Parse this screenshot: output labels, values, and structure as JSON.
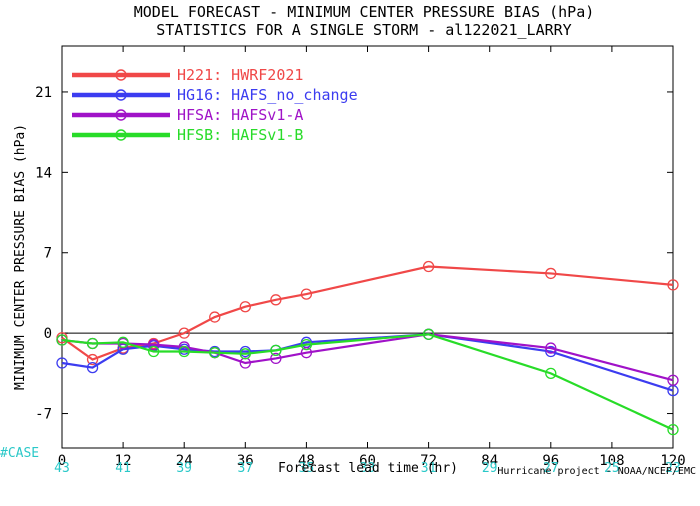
{
  "chart_data": {
    "type": "line",
    "title": "MODEL FORECAST - MINIMUM CENTER PRESSURE BIAS (hPa)",
    "subtitle": "STATISTICS FOR A SINGLE STORM - al122021_LARRY",
    "xlabel": "Forecast lead time (hr)",
    "ylabel": "MINIMUM CENTER PRESSURE BIAS (hPa)",
    "xlim": [
      0,
      120
    ],
    "ylim": [
      -10,
      25
    ],
    "x_ticks": [
      0,
      12,
      24,
      36,
      48,
      60,
      72,
      84,
      96,
      108,
      120
    ],
    "y_ticks": [
      -7,
      0,
      7,
      14,
      21
    ],
    "case_label": "#CASE",
    "case_x": [
      0,
      12,
      24,
      36,
      48,
      60,
      72,
      84,
      96,
      108,
      120
    ],
    "case_counts": [
      43,
      41,
      39,
      37,
      35,
      33,
      31,
      29,
      27,
      25,
      23
    ],
    "case_color": "#2ac8c8",
    "credit": "Hurricane project - NOAA/NCEP/EMC",
    "legend_position": "top-left",
    "series": [
      {
        "code": "H221",
        "name": "HWRF2021",
        "color": "#f04848",
        "x": [
          0,
          6,
          12,
          18,
          24,
          30,
          36,
          42,
          48,
          72,
          96,
          120
        ],
        "y": [
          -0.4,
          -2.3,
          -1.3,
          -0.9,
          0.0,
          1.4,
          2.3,
          2.9,
          3.4,
          5.8,
          5.2,
          4.2
        ]
      },
      {
        "code": "HG16",
        "name": "HAFS_no_change",
        "color": "#3c3cf0",
        "x": [
          0,
          6,
          12,
          18,
          24,
          30,
          36,
          42,
          48,
          72,
          96,
          120
        ],
        "y": [
          -2.6,
          -3.0,
          -1.4,
          -1.1,
          -1.4,
          -1.6,
          -1.6,
          -1.5,
          -0.8,
          -0.1,
          -1.6,
          -5.0
        ]
      },
      {
        "code": "HFSA",
        "name": "HAFSv1-A",
        "color": "#a012c8",
        "x": [
          0,
          6,
          12,
          18,
          24,
          30,
          36,
          42,
          48,
          72,
          96,
          120
        ],
        "y": [
          -0.6,
          -0.9,
          -0.9,
          -1.0,
          -1.2,
          -1.7,
          -2.6,
          -2.2,
          -1.7,
          -0.1,
          -1.3,
          -4.1
        ]
      },
      {
        "code": "HFSB",
        "name": "HAFSv1-B",
        "color": "#28dc28",
        "x": [
          0,
          6,
          12,
          18,
          24,
          30,
          36,
          42,
          48,
          72,
          96,
          120
        ],
        "y": [
          -0.6,
          -0.9,
          -0.8,
          -1.6,
          -1.6,
          -1.7,
          -1.8,
          -1.5,
          -1.0,
          -0.1,
          -3.5,
          -8.4
        ]
      }
    ]
  }
}
